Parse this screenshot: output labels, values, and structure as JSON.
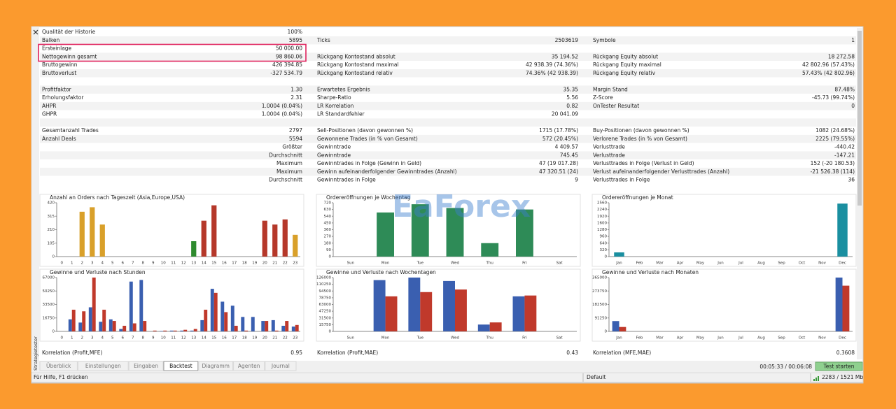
{
  "report": [
    [
      [
        {
          "label": "Qualität der Historie",
          "value": "100%"
        }
      ],
      [
        {
          "label": "Balken",
          "value": "5895"
        },
        {
          "label": "Ticks",
          "value": "2503619"
        },
        {
          "label": "Symbole",
          "value": "1"
        }
      ],
      [
        {
          "label": "Ersteinlage",
          "value": "50 000.00"
        }
      ],
      [
        {
          "label": "Nettogewinn gesamt",
          "value": "98 860.06"
        },
        {
          "label": "Rückgang Kontostand absolut",
          "value": "35 194.52"
        },
        {
          "label": "Rückgang Equity absolut",
          "value": "18 272.58"
        }
      ],
      [
        {
          "label": "Bruttogewinn",
          "value": "426 394.85"
        },
        {
          "label": "Rückgang Kontostand maximal",
          "value": "42 938.39 (74.36%)"
        },
        {
          "label": "Rückgang Equity maximal",
          "value": "42 802.96 (57.43%)"
        }
      ],
      [
        {
          "label": "Bruttoverlust",
          "value": "-327 534.79"
        },
        {
          "label": "Rückgang Kontostand relativ",
          "value": "74.36% (42 938.39)"
        },
        {
          "label": "Rückgang Equity relativ",
          "value": "57.43% (42 802.96)"
        }
      ]
    ],
    [
      [
        {
          "label": "Profitfaktor",
          "value": "1.30"
        },
        {
          "label": "Erwartetes Ergebnis",
          "value": "35.35"
        },
        {
          "label": "Margin Stand",
          "value": "87.48%"
        }
      ],
      [
        {
          "label": "Erholungsfaktor",
          "value": "2.31"
        },
        {
          "label": "Sharpe-Ratio",
          "value": "5.56"
        },
        {
          "label": "Z-Score",
          "value": "-45.73 (99.74%)"
        }
      ],
      [
        {
          "label": "AHPR",
          "value": "1.0004 (0.04%)"
        },
        {
          "label": "LR Korrelation",
          "value": "0.82"
        },
        {
          "label": "OnTester Resultat",
          "value": "0"
        }
      ],
      [
        {
          "label": "GHPR",
          "value": "1.0004 (0.04%)"
        },
        {
          "label": "LR Standardfehler",
          "value": "20 041.09"
        }
      ]
    ],
    [
      [
        {
          "label": "Gesamtanzahl Trades",
          "value": "2797"
        },
        {
          "label": "Sell-Positionen (davon gewonnen %)",
          "value": "1715 (17.78%)"
        },
        {
          "label": "Buy-Positionen (davon gewonnen %)",
          "value": "1082 (24.68%)"
        }
      ],
      [
        {
          "label": "Anzahl Deals",
          "value": "5594"
        },
        {
          "label": "Gewonnene Trades (in % von Gesamt)",
          "value": "572 (20.45%)"
        },
        {
          "label": "Verlorene Trades (in % von Gesamt)",
          "value": "2225 (79.55%)"
        }
      ],
      [
        {
          "note": "Größter"
        },
        {
          "label": "Gewinntrade",
          "value": "4 409.57"
        },
        {
          "label": "Verlusttrade",
          "value": "-440.42"
        }
      ],
      [
        {
          "note": "Durchschnitt"
        },
        {
          "label": "Gewinntrade",
          "value": "745.45"
        },
        {
          "label": "Verlusttrade",
          "value": "-147.21"
        }
      ],
      [
        {
          "note": "Maximum"
        },
        {
          "label": "Gewinntrades in Folge (Gewinn in Geld)",
          "value": "47 (19 017.28)"
        },
        {
          "label": "Verlusttrades in Folge (Verlust in Geld)",
          "value": "152 (-20 180.53)"
        }
      ],
      [
        {
          "note": "Maximum"
        },
        {
          "label": "Gewinn aufeinanderfolgender Gewinntrades (Anzahl)",
          "value": "47 320.51 (24)"
        },
        {
          "label": "Verlust aufeinanderfolgender Verlusttrades (Anzahl)",
          "value": "-21 526.38 (114)"
        }
      ],
      [
        {
          "note": "Durchschnitt"
        },
        {
          "label": "Gewinntrades in Folge",
          "value": "9"
        },
        {
          "label": "Verlusttrades in Folge",
          "value": "36"
        }
      ]
    ]
  ],
  "charts": [
    {
      "type": "bar",
      "title": "Anzahl an Orders nach Tageszeit (Asia,Europe,USA)",
      "categories": [
        "0",
        "1",
        "2",
        "3",
        "4",
        "5",
        "6",
        "7",
        "8",
        "9",
        "10",
        "11",
        "12",
        "13",
        "14",
        "15",
        "16",
        "17",
        "18",
        "19",
        "20",
        "21",
        "22",
        "23"
      ],
      "ylim": [
        0,
        420
      ],
      "yticks": [
        0,
        105,
        210,
        315,
        420
      ],
      "series": [
        {
          "values": [
            0,
            0,
            350,
            385,
            250,
            0,
            0,
            0,
            0,
            0,
            0,
            0,
            0,
            120,
            280,
            400,
            0,
            0,
            0,
            0,
            280,
            250,
            290,
            170
          ],
          "colors": [
            "#d9a02a",
            "#d9a02a",
            "#d9a02a",
            "#d9a02a",
            "#d9a02a",
            "#d9a02a",
            "#d9a02a",
            "#d9a02a",
            "#d9a02a",
            "#d9a02a",
            "#d9a02a",
            "#d9a02a",
            "#d9a02a",
            "#2e8b2e",
            "#b5382a",
            "#b5382a",
            "#b5382a",
            "#b5382a",
            "#b5382a",
            "#b5382a",
            "#b5382a",
            "#b5382a",
            "#b5382a",
            "#d9a02a"
          ]
        }
      ]
    },
    {
      "type": "bar",
      "title": "Ordereröffnungen je Wochentag",
      "categories": [
        "Sun",
        "Mon",
        "Tue",
        "Wed",
        "Thu",
        "Fri",
        "Sat"
      ],
      "ylim": [
        0,
        720
      ],
      "yticks": [
        0,
        90,
        180,
        270,
        360,
        450,
        540,
        630,
        720
      ],
      "series": [
        {
          "values": [
            0,
            590,
            700,
            650,
            180,
            630,
            0
          ],
          "color": "#2e8b57"
        }
      ]
    },
    {
      "type": "bar",
      "title": "Ordereröffnungen je Monat",
      "categories": [
        "Jan",
        "Feb",
        "Mar",
        "Apr",
        "May",
        "Jun",
        "Jul",
        "Aug",
        "Sep",
        "Oct",
        "Nov",
        "Dec"
      ],
      "ylim": [
        0,
        2560
      ],
      "yticks": [
        0,
        320,
        640,
        960,
        1280,
        1600,
        1920,
        2240,
        2560
      ],
      "series": [
        {
          "values": [
            200,
            0,
            0,
            0,
            0,
            0,
            0,
            0,
            0,
            0,
            0,
            2520
          ],
          "color": "#1a8fa0"
        }
      ]
    },
    {
      "type": "bar",
      "title": "Gewinne und Verluste nach Stunden",
      "categories": [
        "0",
        "1",
        "2",
        "3",
        "4",
        "5",
        "6",
        "7",
        "8",
        "9",
        "10",
        "11",
        "12",
        "13",
        "14",
        "15",
        "16",
        "17",
        "18",
        "19",
        "20",
        "21",
        "22",
        "23"
      ],
      "ylim": [
        0,
        67000
      ],
      "yticks": [
        0,
        16750,
        33500,
        50250,
        67000
      ],
      "series": [
        {
          "values": [
            0,
            15000,
            11000,
            30000,
            12000,
            15000,
            3000,
            62000,
            64000,
            0,
            500,
            1000,
            1000,
            1000,
            14000,
            53000,
            37000,
            32000,
            18000,
            18000,
            13000,
            14000,
            7000,
            6000
          ],
          "color": "#3a5fb0"
        },
        {
          "values": [
            0,
            27000,
            25000,
            67000,
            27000,
            13000,
            7000,
            10000,
            13000,
            1000,
            1000,
            1000,
            2000,
            3000,
            27000,
            48000,
            24000,
            7000,
            1000,
            0,
            13000,
            1000,
            13000,
            8000
          ],
          "color": "#c0392b"
        }
      ]
    },
    {
      "type": "bar",
      "title": "Gewinne und Verluste nach Wochentagen",
      "categories": [
        "Sun",
        "Mon",
        "Tue",
        "Wed",
        "Thu",
        "Fri",
        "Sat"
      ],
      "ylim": [
        0,
        126000
      ],
      "yticks": [
        0,
        15750,
        31500,
        47250,
        63000,
        78750,
        94500,
        110250,
        126000
      ],
      "series": [
        {
          "values": [
            0,
            120000,
            126000,
            118000,
            16000,
            82000,
            0
          ],
          "color": "#3a5fb0"
        },
        {
          "values": [
            0,
            82000,
            92000,
            98000,
            21000,
            84000,
            0
          ],
          "color": "#c0392b"
        }
      ]
    },
    {
      "type": "bar",
      "title": "Gewinne und Verluste nach Monaten",
      "categories": [
        "Jan",
        "Feb",
        "Mar",
        "Apr",
        "May",
        "Jun",
        "Jul",
        "Aug",
        "Sep",
        "Oct",
        "Nov",
        "Dec"
      ],
      "ylim": [
        0,
        365000
      ],
      "yticks": [
        0,
        91250,
        182500,
        273750,
        365000
      ],
      "series": [
        {
          "values": [
            70000,
            0,
            0,
            0,
            0,
            0,
            0,
            0,
            0,
            0,
            0,
            365000
          ],
          "color": "#3a5fb0"
        },
        {
          "values": [
            30000,
            0,
            0,
            0,
            0,
            0,
            0,
            0,
            0,
            0,
            0,
            310000
          ],
          "color": "#c0392b"
        }
      ]
    }
  ],
  "correlations": [
    {
      "label": "Korrelation (Profit,MFE)",
      "value": "0.95"
    },
    {
      "label": "Korrelation (Profit,MAE)",
      "value": "0.43"
    },
    {
      "label": "Korrelation (MFE,MAE)",
      "value": "0.3608"
    }
  ],
  "tabs": [
    "Überblick",
    "Einstellungen",
    "Eingaben",
    "Backtest",
    "Diagramm",
    "Agenten",
    "Journal"
  ],
  "active_tab": 3,
  "side_label": "Strategietester",
  "timer": "00:05:33 / 00:06:08",
  "start_button": "Test starten",
  "status": {
    "help": "Für Hilfe, F1 drücken",
    "profile": "Default",
    "memory": "2283 / 1521 Mb"
  },
  "watermark": "EaForex"
}
